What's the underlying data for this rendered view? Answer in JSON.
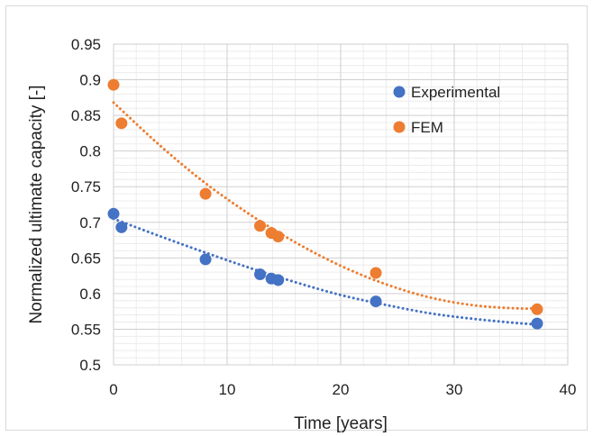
{
  "chart_data": {
    "type": "scatter",
    "title": "",
    "xlabel": "Time [years]",
    "ylabel": "Normalized ultimate capacity [-]",
    "xlim": [
      0,
      40
    ],
    "ylim": [
      0.5,
      0.95
    ],
    "xticks": [
      0,
      10,
      20,
      30,
      40
    ],
    "yticks": [
      0.5,
      0.55,
      0.6,
      0.65,
      0.7,
      0.75,
      0.8,
      0.85,
      0.9,
      0.95
    ],
    "xtick_labels": [
      "0",
      "10",
      "20",
      "30",
      "40"
    ],
    "ytick_labels": [
      "0.5",
      "0.55",
      "0.6",
      "0.65",
      "0.7",
      "0.75",
      "0.8",
      "0.85",
      "0.9",
      "0.95"
    ],
    "grid": true,
    "legend_position": "top-right",
    "series": [
      {
        "name": "Experimental",
        "color": "#4472C4",
        "x": [
          0,
          0.7,
          8.1,
          12.9,
          13.9,
          14.5,
          23.1,
          37.3
        ],
        "y": [
          0.712,
          0.693,
          0.648,
          0.627,
          0.621,
          0.619,
          0.589,
          0.558
        ],
        "trendline": {
          "style": "dotted",
          "x": [
            0,
            4,
            8,
            12,
            16,
            20,
            24,
            28,
            32,
            36,
            37.3
          ],
          "y": [
            0.705,
            0.681,
            0.658,
            0.636,
            0.616,
            0.598,
            0.584,
            0.572,
            0.564,
            0.558,
            0.557
          ]
        }
      },
      {
        "name": "FEM",
        "color": "#ED7D31",
        "x": [
          0,
          0.7,
          8.1,
          12.9,
          13.9,
          14.5,
          23.1,
          37.3
        ],
        "y": [
          0.893,
          0.839,
          0.74,
          0.695,
          0.685,
          0.68,
          0.629,
          0.578
        ],
        "trendline": {
          "style": "dotted",
          "x": [
            0,
            4,
            8,
            12,
            16,
            20,
            24,
            28,
            32,
            36,
            37.3
          ],
          "y": [
            0.868,
            0.809,
            0.756,
            0.711,
            0.672,
            0.639,
            0.613,
            0.594,
            0.583,
            0.579,
            0.58
          ]
        }
      }
    ]
  }
}
